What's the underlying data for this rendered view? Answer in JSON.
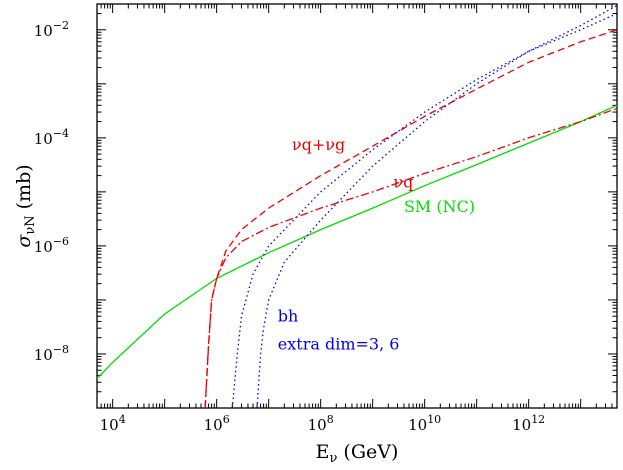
{
  "chart_data": {
    "type": "line",
    "x_scale": "log",
    "y_scale": "log",
    "xlim": [
      5000.0,
      50000000000000.0
    ],
    "ylim": [
      1e-09,
      0.03
    ],
    "xlabel": "E",
    "xlabel_sub": "ν",
    "xlabel_unit": " (GeV)",
    "ylabel": "σ",
    "ylabel_sub": "νN",
    "ylabel_unit": " (mb)",
    "x_ticks": [
      {
        "value": 10000.0,
        "base": "10",
        "exp": "4"
      },
      {
        "value": 1000000.0,
        "base": "10",
        "exp": "6"
      },
      {
        "value": 100000000.0,
        "base": "10",
        "exp": "8"
      },
      {
        "value": 10000000000.0,
        "base": "10",
        "exp": "10"
      },
      {
        "value": 1000000000000.0,
        "base": "10",
        "exp": "12"
      }
    ],
    "y_ticks": [
      {
        "value": 1e-08,
        "base": "10",
        "exp": "−8"
      },
      {
        "value": 1e-06,
        "base": "10",
        "exp": "−6"
      },
      {
        "value": 0.0001,
        "base": "10",
        "exp": "−4"
      },
      {
        "value": 0.01,
        "base": "10",
        "exp": "−2"
      }
    ],
    "grid": false,
    "series": [
      {
        "name": "SM (NC)",
        "color": "#00dd00",
        "dash": "solid",
        "x": [
          5000.0,
          10000.0,
          100000.0,
          1000000.0,
          10000000.0,
          100000000.0,
          1000000000.0,
          10000000000.0,
          100000000000.0,
          1000000000000.0,
          10000000000000.0,
          50000000000000.0
        ],
        "y": [
          3.5e-09,
          7e-09,
          5.5e-08,
          2.5e-07,
          7.5e-07,
          2e-06,
          5e-06,
          1.3e-05,
          3.2e-05,
          8e-05,
          0.0002,
          0.0004
        ]
      },
      {
        "name": "νq",
        "color": "#ee0000",
        "dash": "dashdot",
        "x": [
          600000.0,
          700000.0,
          800000.0,
          1000000.0,
          1500000.0,
          3000000.0,
          10000000.0,
          100000000.0,
          1000000000.0,
          10000000000.0,
          100000000000.0,
          1000000000000.0,
          10000000000000.0,
          50000000000000.0
        ],
        "y": [
          1e-09,
          1.5e-08,
          1e-07,
          2.5e-07,
          6e-07,
          1.2e-06,
          2.2e-06,
          5e-06,
          1e-05,
          2.2e-05,
          4.5e-05,
          0.0001,
          0.0002,
          0.00035
        ]
      },
      {
        "name": "νq+νg",
        "color": "#ee0000",
        "dash": "dashed",
        "x": [
          600000.0,
          700000.0,
          800000.0,
          1000000.0,
          1500000.0,
          3000000.0,
          10000000.0,
          100000000.0,
          1000000000.0,
          10000000000.0,
          100000000000.0,
          1000000000000.0,
          10000000000000.0,
          50000000000000.0
        ],
        "y": [
          1e-09,
          1.5e-08,
          1e-07,
          2.5e-07,
          8e-07,
          2e-06,
          5e-06,
          2e-05,
          7e-05,
          0.00025,
          0.0008,
          0.0025,
          0.006,
          0.01
        ]
      },
      {
        "name": "bh extra dim=3",
        "color": "#0000ee",
        "dash": "dotted",
        "x": [
          2000000.0,
          2500000.0,
          3000000.0,
          5000000.0,
          10000000.0,
          100000000.0,
          1000000000.0,
          10000000000.0,
          100000000000.0,
          1000000000000.0,
          10000000000000.0,
          50000000000000.0
        ],
        "y": [
          1e-09,
          1e-08,
          5e-08,
          3e-07,
          1e-06,
          1e-05,
          6e-05,
          0.0003,
          0.0012,
          0.004,
          0.01,
          0.02
        ]
      },
      {
        "name": "bh extra dim=6",
        "color": "#0000ee",
        "dash": "dotted",
        "x": [
          6000000.0,
          7000000.0,
          8000000.0,
          10000000.0,
          20000000.0,
          100000000.0,
          1000000000.0,
          10000000000.0,
          100000000000.0,
          1000000000000.0,
          10000000000000.0,
          50000000000000.0
        ],
        "y": [
          1e-09,
          1e-08,
          3e-08,
          1e-07,
          5e-07,
          3e-06,
          3e-05,
          0.0002,
          0.001,
          0.004,
          0.012,
          0.028
        ]
      }
    ],
    "annotations": [
      {
        "id": "nuqg",
        "text": "νq+νg",
        "color": "#ee0000",
        "x": 28000000.0,
        "y": 6e-05
      },
      {
        "id": "nuq",
        "text": "νq",
        "color": "#ee0000",
        "x": 2500000000.0,
        "y": 1.2e-05
      },
      {
        "id": "sm",
        "text": "SM (NC)",
        "color": "#00dd00",
        "x": 4000000000.0,
        "y": 4.2e-06
      },
      {
        "id": "bh",
        "text": "bh",
        "color": "#0000ee",
        "x": 15000000.0,
        "y": 4e-08
      },
      {
        "id": "extra",
        "text": "extra dim=3, 6",
        "color": "#0000ee",
        "x": 15000000.0,
        "y": 1.2e-08
      }
    ]
  }
}
